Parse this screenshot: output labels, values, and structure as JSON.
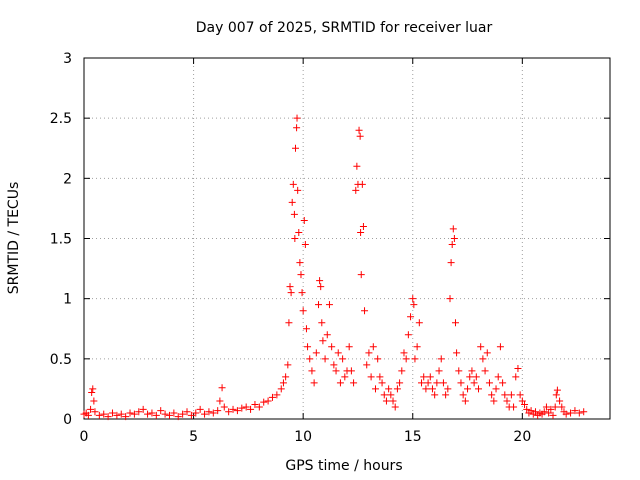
{
  "chart_data": {
    "type": "scatter",
    "title": "Day 007 of 2025, SRMTID for receiver luar",
    "xlabel": "GPS time / hours",
    "ylabel": "SRMTID / TECUs",
    "xlim": [
      0,
      24
    ],
    "ylim": [
      0,
      3
    ],
    "xticks": [
      0,
      5,
      10,
      15,
      20
    ],
    "yticks": [
      0,
      0.5,
      1,
      1.5,
      2,
      2.5,
      3
    ],
    "x_tick_labels": [
      "0",
      "5",
      "10",
      "15",
      "20"
    ],
    "y_tick_labels": [
      "0",
      "0.5",
      "1",
      "1.5",
      "2",
      "2.5",
      "3"
    ],
    "grid": true,
    "marker": "+",
    "color": "#ff0000",
    "series": [
      {
        "name": "SRMTID",
        "points": [
          [
            0.0,
            0.04
          ],
          [
            0.1,
            0.05
          ],
          [
            0.2,
            0.03
          ],
          [
            0.3,
            0.08
          ],
          [
            0.35,
            0.22
          ],
          [
            0.4,
            0.25
          ],
          [
            0.45,
            0.15
          ],
          [
            0.5,
            0.06
          ],
          [
            0.7,
            0.03
          ],
          [
            0.9,
            0.04
          ],
          [
            1.1,
            0.02
          ],
          [
            1.3,
            0.05
          ],
          [
            1.5,
            0.03
          ],
          [
            1.7,
            0.04
          ],
          [
            1.9,
            0.02
          ],
          [
            2.1,
            0.05
          ],
          [
            2.3,
            0.04
          ],
          [
            2.5,
            0.06
          ],
          [
            2.7,
            0.08
          ],
          [
            2.9,
            0.04
          ],
          [
            3.1,
            0.05
          ],
          [
            3.3,
            0.03
          ],
          [
            3.5,
            0.07
          ],
          [
            3.7,
            0.04
          ],
          [
            3.9,
            0.03
          ],
          [
            4.1,
            0.05
          ],
          [
            4.3,
            0.02
          ],
          [
            4.5,
            0.04
          ],
          [
            4.7,
            0.06
          ],
          [
            4.9,
            0.03
          ],
          [
            5.1,
            0.05
          ],
          [
            5.3,
            0.08
          ],
          [
            5.5,
            0.04
          ],
          [
            5.7,
            0.06
          ],
          [
            5.9,
            0.05
          ],
          [
            6.1,
            0.07
          ],
          [
            6.2,
            0.15
          ],
          [
            6.3,
            0.26
          ],
          [
            6.4,
            0.1
          ],
          [
            6.6,
            0.06
          ],
          [
            6.8,
            0.08
          ],
          [
            7.0,
            0.07
          ],
          [
            7.2,
            0.09
          ],
          [
            7.4,
            0.1
          ],
          [
            7.6,
            0.08
          ],
          [
            7.8,
            0.12
          ],
          [
            8.0,
            0.1
          ],
          [
            8.2,
            0.14
          ],
          [
            8.4,
            0.15
          ],
          [
            8.6,
            0.18
          ],
          [
            8.8,
            0.2
          ],
          [
            9.0,
            0.25
          ],
          [
            9.1,
            0.3
          ],
          [
            9.2,
            0.35
          ],
          [
            9.3,
            0.45
          ],
          [
            9.35,
            0.8
          ],
          [
            9.4,
            1.1
          ],
          [
            9.45,
            1.05
          ],
          [
            9.5,
            1.8
          ],
          [
            9.55,
            1.95
          ],
          [
            9.6,
            1.7
          ],
          [
            9.62,
            1.5
          ],
          [
            9.65,
            2.25
          ],
          [
            9.7,
            2.42
          ],
          [
            9.72,
            2.5
          ],
          [
            9.75,
            1.9
          ],
          [
            9.8,
            1.55
          ],
          [
            9.85,
            1.3
          ],
          [
            9.9,
            1.2
          ],
          [
            9.95,
            1.05
          ],
          [
            10.0,
            0.9
          ],
          [
            10.05,
            1.65
          ],
          [
            10.1,
            1.45
          ],
          [
            10.15,
            0.75
          ],
          [
            10.2,
            0.6
          ],
          [
            10.3,
            0.5
          ],
          [
            10.4,
            0.4
          ],
          [
            10.5,
            0.3
          ],
          [
            10.6,
            0.55
          ],
          [
            10.7,
            0.95
          ],
          [
            10.75,
            1.15
          ],
          [
            10.8,
            1.1
          ],
          [
            10.85,
            0.8
          ],
          [
            10.9,
            0.65
          ],
          [
            11.0,
            0.5
          ],
          [
            11.1,
            0.7
          ],
          [
            11.2,
            0.95
          ],
          [
            11.3,
            0.6
          ],
          [
            11.4,
            0.45
          ],
          [
            11.5,
            0.4
          ],
          [
            11.6,
            0.55
          ],
          [
            11.7,
            0.3
          ],
          [
            11.8,
            0.5
          ],
          [
            11.9,
            0.35
          ],
          [
            12.0,
            0.4
          ],
          [
            12.1,
            0.6
          ],
          [
            12.2,
            0.4
          ],
          [
            12.3,
            0.3
          ],
          [
            12.4,
            1.9
          ],
          [
            12.45,
            2.1
          ],
          [
            12.5,
            1.95
          ],
          [
            12.55,
            2.4
          ],
          [
            12.6,
            2.35
          ],
          [
            12.62,
            1.55
          ],
          [
            12.65,
            1.2
          ],
          [
            12.7,
            1.95
          ],
          [
            12.75,
            1.6
          ],
          [
            12.8,
            0.9
          ],
          [
            12.9,
            0.45
          ],
          [
            13.0,
            0.55
          ],
          [
            13.1,
            0.35
          ],
          [
            13.2,
            0.6
          ],
          [
            13.3,
            0.25
          ],
          [
            13.4,
            0.5
          ],
          [
            13.5,
            0.35
          ],
          [
            13.6,
            0.3
          ],
          [
            13.7,
            0.2
          ],
          [
            13.8,
            0.15
          ],
          [
            13.9,
            0.25
          ],
          [
            14.0,
            0.2
          ],
          [
            14.1,
            0.15
          ],
          [
            14.2,
            0.1
          ],
          [
            14.3,
            0.25
          ],
          [
            14.4,
            0.3
          ],
          [
            14.5,
            0.4
          ],
          [
            14.6,
            0.55
          ],
          [
            14.7,
            0.5
          ],
          [
            14.8,
            0.7
          ],
          [
            14.9,
            0.85
          ],
          [
            15.0,
            1.0
          ],
          [
            15.05,
            0.95
          ],
          [
            15.1,
            0.5
          ],
          [
            15.2,
            0.6
          ],
          [
            15.3,
            0.8
          ],
          [
            15.4,
            0.3
          ],
          [
            15.5,
            0.35
          ],
          [
            15.6,
            0.25
          ],
          [
            15.7,
            0.3
          ],
          [
            15.8,
            0.35
          ],
          [
            15.9,
            0.25
          ],
          [
            16.0,
            0.2
          ],
          [
            16.1,
            0.3
          ],
          [
            16.2,
            0.4
          ],
          [
            16.3,
            0.5
          ],
          [
            16.4,
            0.3
          ],
          [
            16.5,
            0.2
          ],
          [
            16.6,
            0.25
          ],
          [
            16.7,
            1.0
          ],
          [
            16.75,
            1.3
          ],
          [
            16.8,
            1.45
          ],
          [
            16.85,
            1.58
          ],
          [
            16.9,
            1.5
          ],
          [
            16.95,
            0.8
          ],
          [
            17.0,
            0.55
          ],
          [
            17.1,
            0.4
          ],
          [
            17.2,
            0.3
          ],
          [
            17.3,
            0.2
          ],
          [
            17.4,
            0.15
          ],
          [
            17.5,
            0.25
          ],
          [
            17.6,
            0.35
          ],
          [
            17.7,
            0.4
          ],
          [
            17.8,
            0.3
          ],
          [
            17.9,
            0.35
          ],
          [
            18.0,
            0.25
          ],
          [
            18.1,
            0.6
          ],
          [
            18.2,
            0.5
          ],
          [
            18.3,
            0.4
          ],
          [
            18.4,
            0.55
          ],
          [
            18.5,
            0.3
          ],
          [
            18.6,
            0.2
          ],
          [
            18.7,
            0.15
          ],
          [
            18.8,
            0.25
          ],
          [
            18.9,
            0.35
          ],
          [
            19.0,
            0.6
          ],
          [
            19.1,
            0.3
          ],
          [
            19.2,
            0.2
          ],
          [
            19.3,
            0.15
          ],
          [
            19.4,
            0.1
          ],
          [
            19.5,
            0.2
          ],
          [
            19.6,
            0.1
          ],
          [
            19.7,
            0.35
          ],
          [
            19.8,
            0.42
          ],
          [
            19.9,
            0.2
          ],
          [
            20.0,
            0.15
          ],
          [
            20.1,
            0.12
          ],
          [
            20.2,
            0.08
          ],
          [
            20.3,
            0.05
          ],
          [
            20.4,
            0.07
          ],
          [
            20.5,
            0.04
          ],
          [
            20.6,
            0.06
          ],
          [
            20.7,
            0.03
          ],
          [
            20.8,
            0.05
          ],
          [
            20.9,
            0.04
          ],
          [
            21.0,
            0.06
          ],
          [
            21.1,
            0.1
          ],
          [
            21.2,
            0.05
          ],
          [
            21.3,
            0.08
          ],
          [
            21.4,
            0.03
          ],
          [
            21.5,
            0.1
          ],
          [
            21.55,
            0.2
          ],
          [
            21.6,
            0.24
          ],
          [
            21.7,
            0.15
          ],
          [
            21.8,
            0.1
          ],
          [
            21.9,
            0.06
          ],
          [
            22.0,
            0.04
          ],
          [
            22.2,
            0.05
          ],
          [
            22.4,
            0.07
          ],
          [
            22.6,
            0.05
          ],
          [
            22.8,
            0.06
          ]
        ]
      }
    ]
  }
}
